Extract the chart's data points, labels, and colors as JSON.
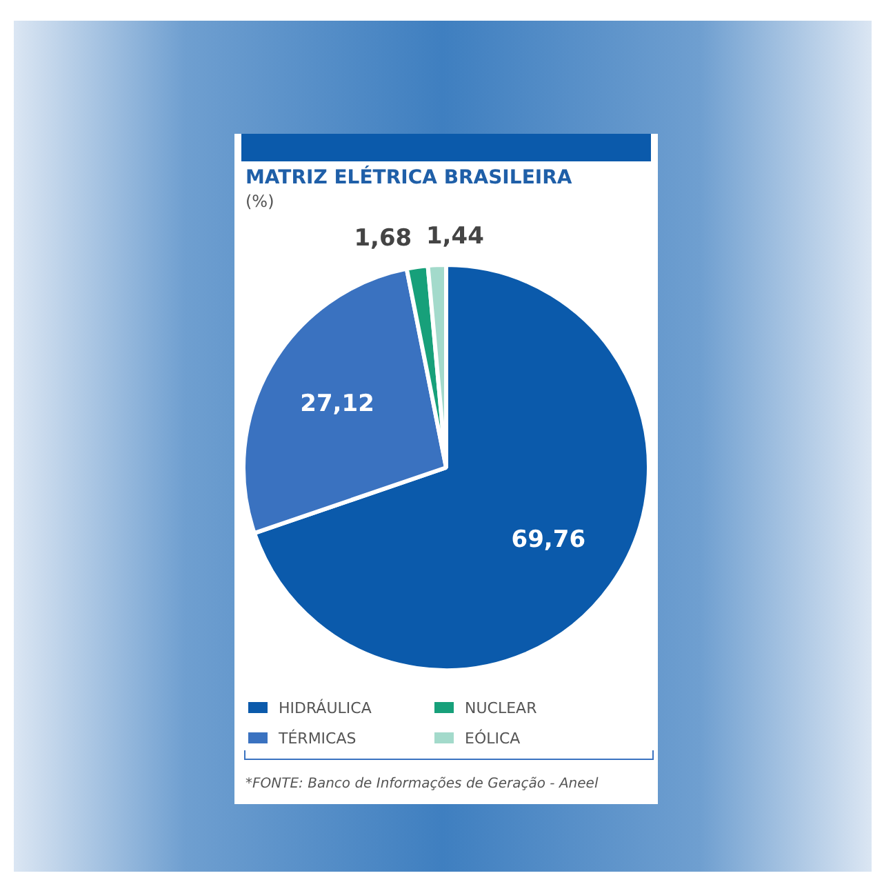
{
  "chart_data": {
    "type": "pie",
    "title": "MATRIZ ELÉTRICA BRASILEIRA",
    "subtitle": "(%)",
    "categories": [
      "HIDRÁULICA",
      "TÉRMICAS",
      "NUCLEAR",
      "EÓLICA"
    ],
    "values": [
      69.76,
      27.12,
      1.68,
      1.44
    ],
    "colors": [
      "#0b5aab",
      "#3a72c0",
      "#17a07a",
      "#a3dacb"
    ],
    "value_labels": [
      "69,76",
      "27,12",
      "1,68",
      "1,44"
    ],
    "legend": "bottom",
    "annotations": [
      "*FONTE: Banco de Informações de Geração - Aneel"
    ]
  }
}
